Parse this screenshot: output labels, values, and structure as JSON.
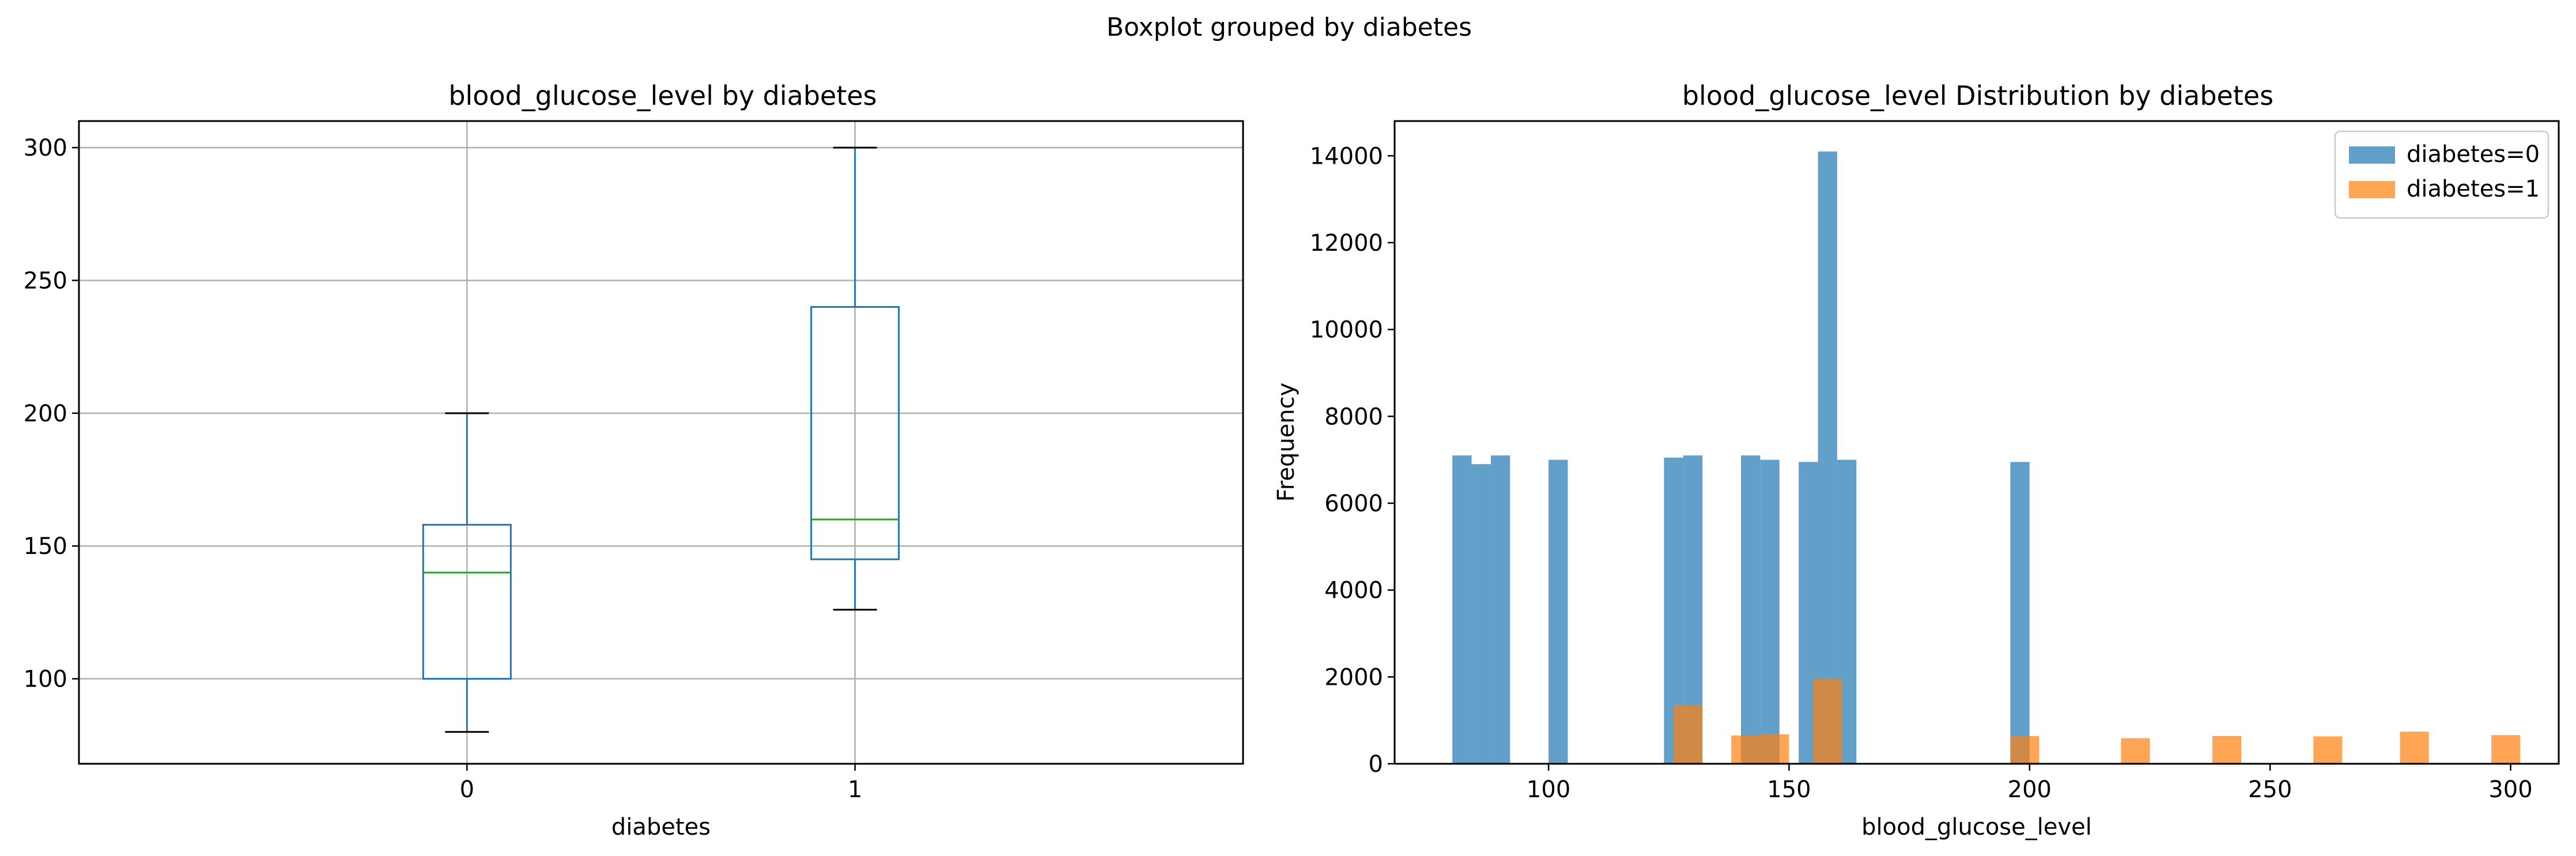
{
  "figure_title": "Boxplot grouped by diabetes",
  "chart_data": [
    {
      "type": "box",
      "title": "blood_glucose_level by diabetes",
      "xlabel": "diabetes",
      "ylabel": "",
      "categories": [
        "0",
        "1"
      ],
      "ylim": [
        68,
        310
      ],
      "yticks": [
        100,
        150,
        200,
        250,
        300
      ],
      "grid": true,
      "boxes": [
        {
          "category": "0",
          "whisker_low": 80,
          "q1": 100,
          "median": 140,
          "q3": 158,
          "whisker_high": 200
        },
        {
          "category": "1",
          "whisker_low": 126,
          "q1": 145,
          "median": 160,
          "q3": 240,
          "whisker_high": 300
        }
      ],
      "colors": {
        "box": "#1f77b4",
        "median": "#2ca02c",
        "whisker_cap": "#000000",
        "grid": "#b0b0b0"
      }
    },
    {
      "type": "histogram",
      "title": "blood_glucose_level Distribution by diabetes",
      "xlabel": "blood_glucose_level",
      "ylabel": "Frequency",
      "xlim": [
        68,
        310
      ],
      "ylim": [
        0,
        14800
      ],
      "xticks": [
        100,
        150,
        200,
        250,
        300
      ],
      "yticks": [
        0,
        2000,
        4000,
        6000,
        8000,
        10000,
        12000,
        14000
      ],
      "grid": false,
      "legend_position": "top-right",
      "series": [
        {
          "name": "diabetes=0",
          "color": "#1f77b4",
          "opacity": 0.7,
          "bins": [
            {
              "x0": 80,
              "x1": 84,
              "count": 7100
            },
            {
              "x0": 84,
              "x1": 88,
              "count": 6900
            },
            {
              "x0": 88,
              "x1": 92,
              "count": 7100
            },
            {
              "x0": 100,
              "x1": 104,
              "count": 7000
            },
            {
              "x0": 124,
              "x1": 128,
              "count": 7050
            },
            {
              "x0": 128,
              "x1": 132,
              "count": 7100
            },
            {
              "x0": 140,
              "x1": 144,
              "count": 7100
            },
            {
              "x0": 144,
              "x1": 148,
              "count": 7000
            },
            {
              "x0": 152,
              "x1": 156,
              "count": 6950
            },
            {
              "x0": 156,
              "x1": 160,
              "count": 14100
            },
            {
              "x0": 160,
              "x1": 164,
              "count": 7000
            },
            {
              "x0": 196,
              "x1": 200,
              "count": 6950
            }
          ]
        },
        {
          "name": "diabetes=1",
          "color": "#ff7f0e",
          "opacity": 0.7,
          "bins": [
            {
              "x0": 126,
              "x1": 132,
              "count": 1350
            },
            {
              "x0": 138,
              "x1": 144,
              "count": 650
            },
            {
              "x0": 144,
              "x1": 150,
              "count": 680
            },
            {
              "x0": 155,
              "x1": 161,
              "count": 1950
            },
            {
              "x0": 196,
              "x1": 202,
              "count": 640
            },
            {
              "x0": 219,
              "x1": 225,
              "count": 590
            },
            {
              "x0": 238,
              "x1": 244,
              "count": 640
            },
            {
              "x0": 259,
              "x1": 265,
              "count": 630
            },
            {
              "x0": 277,
              "x1": 283,
              "count": 740
            },
            {
              "x0": 296,
              "x1": 302,
              "count": 660
            }
          ]
        }
      ]
    }
  ]
}
